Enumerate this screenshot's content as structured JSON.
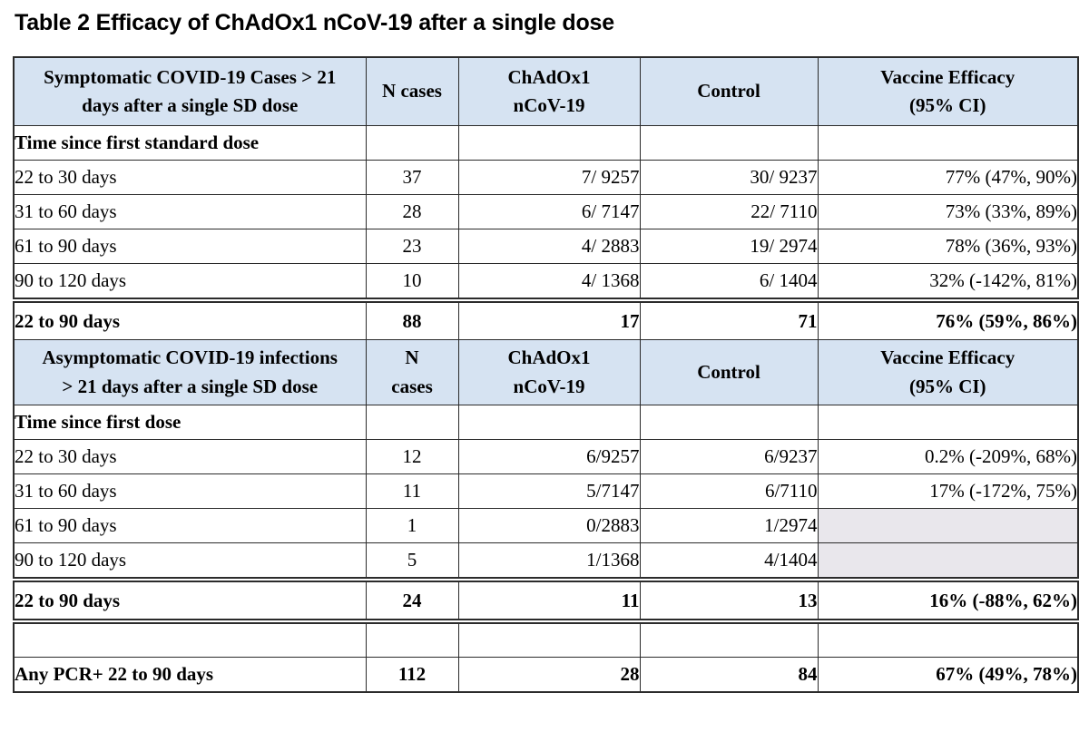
{
  "title": "Table 2 Efficacy of ChAdOx1 nCoV-19 after a single dose",
  "colors": {
    "header_bg": "#d6e3f2",
    "shaded_cell": "#e9e7ec",
    "border": "#2b2b2b"
  },
  "table": {
    "sections": [
      {
        "header": {
          "label": "Symptomatic COVID-19 Cases > 21\ndays after a single SD dose",
          "n_cases": "N cases",
          "vaccine_arm": "ChAdOx1\nnCoV-19",
          "control": "Control",
          "efficacy": "Vaccine Efficacy\n(95% CI)"
        },
        "rows": [
          {
            "label": "Time since first standard dose",
            "bold": true,
            "cells": [
              "",
              "",
              "",
              ""
            ]
          },
          {
            "label": "22 to 30 days",
            "cells": [
              "37",
              "7/ 9257",
              "30/ 9237",
              "77% (47%, 90%)"
            ]
          },
          {
            "label": "31 to 60 days",
            "cells": [
              "28",
              "6/ 7147",
              "22/ 7110",
              "73% (33%, 89%)"
            ]
          },
          {
            "label": "61 to 90 days",
            "cells": [
              "23",
              "4/ 2883",
              "19/ 2974",
              "78% (36%, 93%)"
            ]
          },
          {
            "label": "90 to 120 days",
            "cells": [
              "10",
              "4/ 1368",
              "6/ 1404",
              "32% (-142%, 81%)"
            ]
          },
          {
            "label": "22 to 90 days",
            "bold": true,
            "summary": true,
            "cells": [
              "88",
              "17",
              "71",
              "76% (59%, 86%)"
            ]
          }
        ]
      },
      {
        "header": {
          "label": "Asymptomatic COVID-19 infections\n> 21 days after a single SD dose",
          "n_cases": "N\ncases",
          "vaccine_arm": "ChAdOx1\nnCoV-19",
          "control": "Control",
          "efficacy": "Vaccine Efficacy\n(95% CI)"
        },
        "rows": [
          {
            "label": "Time since first dose",
            "bold": true,
            "cells": [
              "",
              "",
              "",
              ""
            ]
          },
          {
            "label": "22 to 30 days",
            "cells": [
              "12",
              "6/9257",
              "6/9237",
              "0.2% (-209%, 68%)"
            ]
          },
          {
            "label": "31 to 60 days",
            "cells": [
              "11",
              "5/7147",
              "6/7110",
              "17% (-172%, 75%)"
            ]
          },
          {
            "label": "61 to 90 days",
            "cells": [
              "1",
              "0/2883",
              "1/2974",
              ""
            ],
            "shaded_last": true
          },
          {
            "label": "90 to 120 days",
            "cells": [
              "5",
              "1/1368",
              "4/1404",
              ""
            ],
            "shaded_last": true
          },
          {
            "label": "22 to 90 days",
            "bold": true,
            "summary": true,
            "double_bottom": true,
            "cells": [
              "24",
              "11",
              "13",
              "16% (-88%, 62%)"
            ]
          },
          {
            "label": "",
            "spacer": true,
            "cells": [
              "",
              "",
              "",
              ""
            ]
          },
          {
            "label": "Any PCR+ 22 to 90 days",
            "bold": true,
            "cells": [
              "112",
              "28",
              "84",
              "67% (49%, 78%)"
            ]
          }
        ]
      }
    ]
  }
}
